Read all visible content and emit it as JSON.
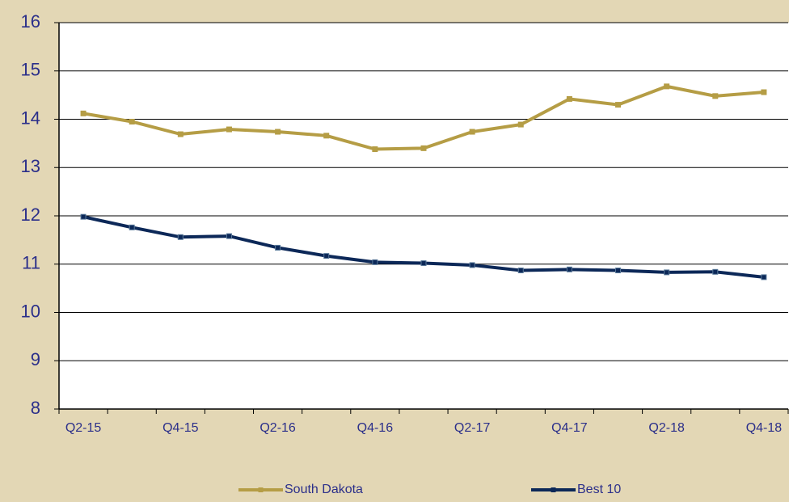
{
  "chart_data": {
    "type": "line",
    "categories": [
      "Q2-15",
      null,
      "Q4-15",
      null,
      "Q2-16",
      null,
      "Q4-16",
      null,
      "Q2-17",
      null,
      "Q4-17",
      null,
      "Q2-18",
      null,
      "Q4-18"
    ],
    "series": [
      {
        "name": "South Dakota",
        "color": "#b59d45",
        "values": [
          14.12,
          13.95,
          13.69,
          13.79,
          13.74,
          13.66,
          13.38,
          13.4,
          13.74,
          13.89,
          14.42,
          14.3,
          14.68,
          14.48,
          14.56
        ]
      },
      {
        "name": "Best 10",
        "color": "#0c2858",
        "values": [
          11.98,
          11.76,
          11.56,
          11.58,
          11.34,
          11.17,
          11.04,
          11.02,
          10.98,
          10.87,
          10.89,
          10.87,
          10.83,
          10.84,
          10.73
        ]
      }
    ],
    "ylim": [
      8,
      16
    ],
    "yticks": [
      8,
      9,
      10,
      11,
      12,
      13,
      14,
      15,
      16
    ],
    "grid": true,
    "legend": "bottom"
  }
}
